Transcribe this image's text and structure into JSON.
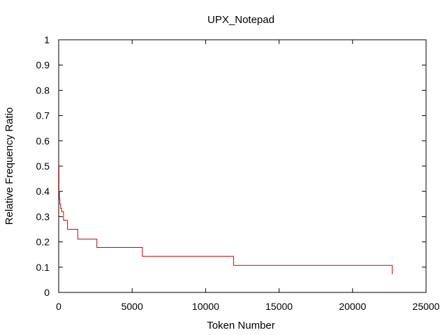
{
  "chart_data": {
    "type": "line",
    "title": "UPX_Notepad",
    "xlabel": "Token Number",
    "ylabel": "Relative Frequency Ratio",
    "xlim": [
      0,
      25000
    ],
    "ylim": [
      0,
      1
    ],
    "xticks": [
      0,
      5000,
      10000,
      15000,
      20000,
      25000
    ],
    "yticks": [
      0,
      0.1,
      0.2,
      0.3,
      0.4,
      0.5,
      0.6,
      0.7,
      0.8,
      0.9,
      1
    ],
    "xtick_labels": [
      "0",
      "5000",
      "10000",
      "15000",
      "20000",
      "25000"
    ],
    "ytick_labels": [
      "0",
      "0.1",
      "0.2",
      "0.3",
      "0.4",
      "0.5",
      "0.6",
      "0.7",
      "0.8",
      "0.9",
      "1"
    ],
    "grid": false,
    "line_color": "#cc0000",
    "series": [
      {
        "x": [
          0,
          20,
          20,
          50,
          50,
          80,
          80,
          130,
          130,
          200,
          200,
          330,
          330,
          600,
          600,
          1300,
          1300,
          2600,
          2600,
          5700,
          5700,
          11900,
          11900,
          22700,
          22700
        ],
        "y": [
          0.5,
          0.5,
          0.4,
          0.4,
          0.37,
          0.37,
          0.35,
          0.35,
          0.333,
          0.333,
          0.32,
          0.32,
          0.286,
          0.286,
          0.25,
          0.25,
          0.211,
          0.211,
          0.178,
          0.178,
          0.143,
          0.143,
          0.107,
          0.107,
          0.072
        ]
      }
    ]
  }
}
